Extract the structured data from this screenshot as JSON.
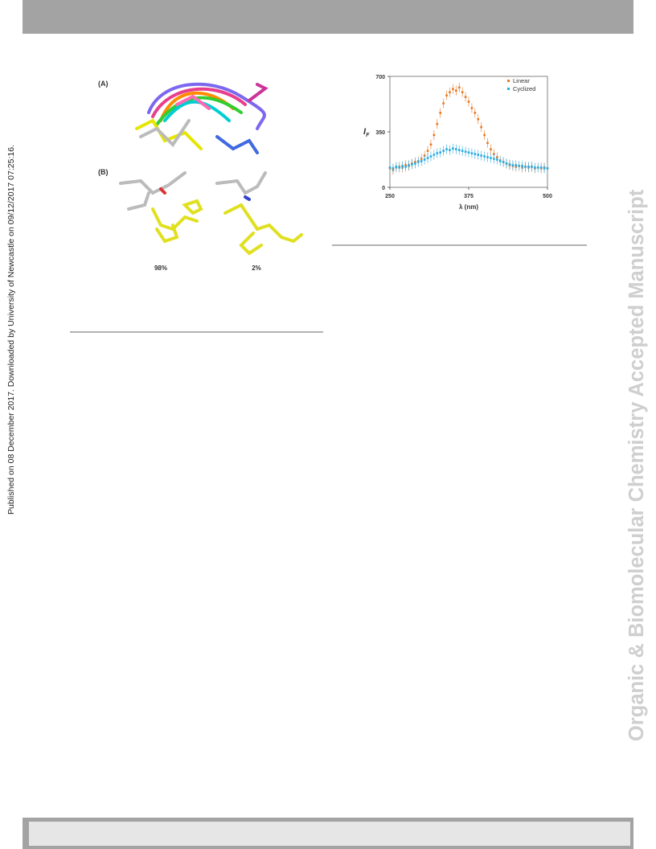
{
  "side_note": "Published on 08 December 2017. Downloaded by University of Newcastle on 09/12/2017 07:25:16.",
  "watermark": "Organic & Biomolecular Chemistry Accepted Manuscript",
  "figure_left": {
    "label_a": "(A)",
    "label_b": "(B)",
    "caption_left": "98%",
    "caption_right": "2%"
  },
  "chart_data": {
    "type": "scatter",
    "xlabel": "λ (nm)",
    "ylabel": "I",
    "ylabel_subscript": "F",
    "xlim": [
      250,
      500
    ],
    "xticks": [
      250,
      375,
      500
    ],
    "ylim": [
      0,
      700
    ],
    "yticks": [
      0,
      350,
      700
    ],
    "legend": "top-right",
    "x": [
      250,
      255,
      260,
      265,
      270,
      275,
      280,
      285,
      290,
      295,
      300,
      305,
      310,
      315,
      320,
      325,
      330,
      335,
      340,
      345,
      350,
      355,
      360,
      365,
      370,
      375,
      380,
      385,
      390,
      395,
      400,
      405,
      410,
      415,
      420,
      425,
      430,
      435,
      440,
      445,
      450,
      455,
      460,
      465,
      470,
      475,
      480,
      485,
      490,
      495,
      500
    ],
    "series": [
      {
        "name": "Linear",
        "color": "#e87722",
        "values": [
          120,
          110,
          125,
          130,
          125,
          140,
          135,
          150,
          160,
          165,
          180,
          200,
          230,
          270,
          330,
          400,
          470,
          530,
          580,
          600,
          620,
          610,
          630,
          600,
          570,
          540,
          500,
          470,
          430,
          380,
          330,
          280,
          240,
          210,
          190,
          170,
          160,
          150,
          140,
          135,
          130,
          135,
          125,
          130,
          125,
          130,
          120,
          125,
          120,
          125,
          120
        ]
      },
      {
        "name": "Cyclized",
        "color": "#29abe2",
        "values": [
          125,
          120,
          130,
          125,
          135,
          130,
          140,
          145,
          150,
          160,
          165,
          175,
          185,
          195,
          205,
          215,
          220,
          230,
          240,
          235,
          245,
          240,
          235,
          230,
          225,
          220,
          215,
          210,
          205,
          200,
          195,
          190,
          185,
          180,
          175,
          165,
          160,
          150,
          145,
          140,
          140,
          135,
          135,
          130,
          130,
          130,
          125,
          125,
          125,
          120,
          120
        ]
      }
    ]
  }
}
